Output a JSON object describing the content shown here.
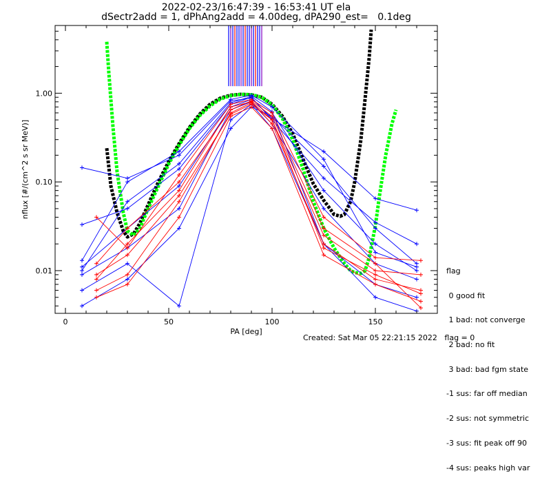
{
  "header": {
    "line1": "2022-02-23/16:47:39 - 16:53:41 UT ela",
    "line2": "dSectr2add = 1, dPhAng2add = 4.00deg, dPA290_est=   0.1deg"
  },
  "legend": {
    "title": "flag",
    "items": [
      " 0 good fit",
      " 1 bad: not converge",
      " 2 bad: no fit",
      " 3 bad: bad fgm state",
      "-1 sus: far off median",
      "-2 sus: not symmetric",
      "-3 sus: fit peak off 90",
      "-4 sus: peaks high var"
    ]
  },
  "footer": "Created: Sat Mar 05 22:21:15 2022   flag = 0",
  "colors": {
    "red": "#ff0000",
    "blue": "#0000ff",
    "green": "#00ff00",
    "black": "#000000",
    "purple": "#8000c0"
  },
  "chart_data": {
    "type": "line",
    "xlabel": "PA [deg]",
    "ylabel": "nflux [#/(cm^2 s sr MeV)]",
    "xlim": [
      -5,
      180
    ],
    "ylim": [
      0.0033,
      5.8
    ],
    "yscale": "log",
    "x_ticks": [
      0,
      50,
      100,
      150
    ],
    "x_tick_labels": [
      "0",
      "50",
      "100",
      "150"
    ],
    "y_ticks": [
      0.01,
      0.1,
      1.0
    ],
    "y_tick_labels": [
      "0.01",
      "0.10",
      "1.00"
    ],
    "vertical_markers": {
      "x": [
        79,
        80,
        81,
        82,
        83,
        84,
        85,
        86,
        87,
        88,
        89,
        90,
        91,
        92,
        93,
        94,
        95
      ],
      "y_range": [
        1.2,
        5.8
      ]
    },
    "series": [
      {
        "color": "#000000",
        "x": [
          20,
          22,
          25,
          28,
          30,
          33,
          36,
          40,
          45,
          50,
          55,
          60,
          65,
          70,
          75,
          80,
          85,
          90,
          95,
          100,
          105,
          110,
          115,
          120,
          125,
          128,
          130,
          133,
          135,
          138,
          140,
          143,
          145,
          147,
          148
        ],
        "y": [
          0.24,
          0.09,
          0.045,
          0.028,
          0.024,
          0.026,
          0.034,
          0.055,
          0.1,
          0.17,
          0.27,
          0.41,
          0.58,
          0.75,
          0.88,
          0.95,
          0.97,
          0.96,
          0.9,
          0.75,
          0.55,
          0.35,
          0.18,
          0.095,
          0.062,
          0.05,
          0.043,
          0.041,
          0.043,
          0.06,
          0.1,
          0.3,
          0.85,
          2.5,
          5.2
        ]
      },
      {
        "color": "#00ff00",
        "x": [
          20,
          21,
          23,
          25,
          28,
          30,
          33,
          36,
          40,
          45,
          50,
          55,
          60,
          65,
          70,
          75,
          80,
          85,
          90,
          95,
          100,
          105,
          110,
          115,
          120,
          125,
          130,
          135,
          138,
          140,
          143,
          145,
          147,
          150,
          152,
          155,
          158,
          160
        ],
        "y": [
          3.8,
          1.7,
          0.42,
          0.13,
          0.045,
          0.028,
          0.025,
          0.03,
          0.05,
          0.09,
          0.16,
          0.26,
          0.4,
          0.56,
          0.72,
          0.86,
          0.94,
          0.97,
          0.96,
          0.9,
          0.74,
          0.52,
          0.3,
          0.14,
          0.06,
          0.03,
          0.018,
          0.012,
          0.01,
          0.0095,
          0.0093,
          0.01,
          0.014,
          0.032,
          0.07,
          0.2,
          0.45,
          0.65
        ]
      },
      {
        "color": "#0000ff",
        "x": [
          8,
          30,
          55,
          80,
          90,
          100,
          125,
          150,
          170
        ],
        "y": [
          0.145,
          0.11,
          0.2,
          0.82,
          0.88,
          0.52,
          0.22,
          0.065,
          0.048
        ]
      },
      {
        "color": "#0000ff",
        "x": [
          8,
          30,
          55,
          80,
          90,
          100,
          125,
          150,
          170
        ],
        "y": [
          0.033,
          0.05,
          0.14,
          0.75,
          0.9,
          0.5,
          0.11,
          0.035,
          0.02
        ]
      },
      {
        "color": "#0000ff",
        "x": [
          8,
          30,
          55,
          80,
          90,
          100,
          125,
          150,
          170
        ],
        "y": [
          0.011,
          0.03,
          0.09,
          0.7,
          0.85,
          0.6,
          0.08,
          0.02,
          0.01
        ]
      },
      {
        "color": "#0000ff",
        "x": [
          8,
          30,
          55,
          80,
          90,
          100,
          125,
          150,
          170
        ],
        "y": [
          0.009,
          0.018,
          0.05,
          0.65,
          0.8,
          0.45,
          0.05,
          0.012,
          0.008
        ]
      },
      {
        "color": "#0000ff",
        "x": [
          8,
          30,
          55,
          80,
          90,
          100,
          125,
          150,
          170
        ],
        "y": [
          0.006,
          0.012,
          0.004,
          0.5,
          0.75,
          0.4,
          0.02,
          0.007,
          0.005
        ]
      },
      {
        "color": "#0000ff",
        "x": [
          8,
          30,
          55,
          80,
          90,
          100,
          125,
          150,
          170
        ],
        "y": [
          0.004,
          0.008,
          0.03,
          0.4,
          0.7,
          0.55,
          0.15,
          0.03,
          0.012
        ]
      },
      {
        "color": "#0000ff",
        "x": [
          8,
          30,
          55,
          80,
          90,
          100,
          125,
          150,
          170
        ],
        "y": [
          0.013,
          0.1,
          0.22,
          0.85,
          0.95,
          0.7,
          0.18,
          0.016,
          0.011
        ]
      },
      {
        "color": "#0000ff",
        "x": [
          8,
          30,
          55,
          80,
          90,
          100,
          125,
          150,
          170
        ],
        "y": [
          0.01,
          0.06,
          0.16,
          0.78,
          0.92,
          0.62,
          0.02,
          0.005,
          0.0035
        ]
      },
      {
        "color": "#ff0000",
        "x": [
          15,
          30,
          55,
          80,
          90,
          100,
          125,
          150,
          172
        ],
        "y": [
          0.04,
          0.018,
          0.12,
          0.75,
          0.85,
          0.6,
          0.04,
          0.014,
          0.013
        ]
      },
      {
        "color": "#ff0000",
        "x": [
          15,
          30,
          55,
          80,
          90,
          100,
          125,
          150,
          172
        ],
        "y": [
          0.008,
          0.02,
          0.08,
          0.7,
          0.8,
          0.5,
          0.025,
          0.01,
          0.009
        ]
      },
      {
        "color": "#ff0000",
        "x": [
          15,
          30,
          55,
          80,
          90,
          100,
          125,
          150,
          172
        ],
        "y": [
          0.006,
          0.009,
          0.06,
          0.6,
          0.78,
          0.45,
          0.02,
          0.008,
          0.006
        ]
      },
      {
        "color": "#ff0000",
        "x": [
          15,
          30,
          55,
          80,
          90,
          100,
          125,
          150,
          172
        ],
        "y": [
          0.005,
          0.007,
          0.04,
          0.55,
          0.7,
          0.4,
          0.015,
          0.007,
          0.0045
        ]
      },
      {
        "color": "#ff0000",
        "x": [
          15,
          30,
          55,
          80,
          90,
          100,
          125,
          150,
          172
        ],
        "y": [
          0.012,
          0.03,
          0.1,
          0.65,
          0.82,
          0.55,
          0.03,
          0.012,
          0.0038
        ]
      },
      {
        "color": "#ff0000",
        "x": [
          15,
          30,
          55,
          80,
          90,
          100,
          125,
          150,
          172
        ],
        "y": [
          0.009,
          0.015,
          0.07,
          0.58,
          0.75,
          0.5,
          0.018,
          0.009,
          0.0055
        ]
      }
    ]
  }
}
